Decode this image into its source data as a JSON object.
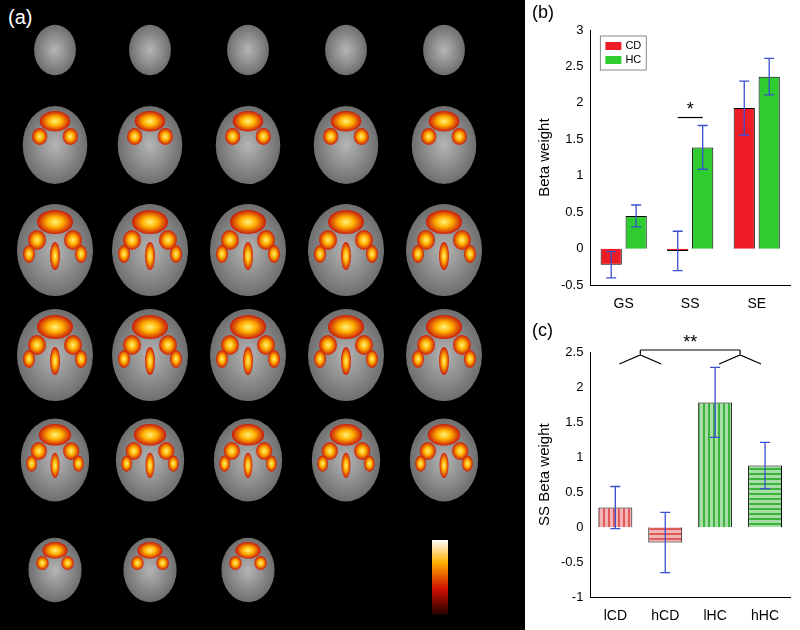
{
  "panel_a": {
    "title": "(a)"
  },
  "chart_data": [
    {
      "type": "bar",
      "title": "(b)",
      "y_label": "Beta weight",
      "categories": [
        "GS",
        "SS",
        "SE"
      ],
      "series": [
        {
          "name": "CD",
          "color": "#ee1c24",
          "values": [
            -0.22,
            -0.03,
            1.93
          ],
          "errors": [
            0.18,
            0.27,
            0.37
          ]
        },
        {
          "name": "HC",
          "color": "#2ecc2e",
          "values": [
            0.45,
            1.39,
            2.36
          ],
          "errors": [
            0.15,
            0.3,
            0.25
          ]
        }
      ],
      "ylim": [
        -0.5,
        3
      ],
      "yticks": [
        -0.5,
        0,
        0.5,
        1,
        1.5,
        2,
        2.5,
        3
      ],
      "grid": false,
      "legend": "upper left",
      "annotations": [
        {
          "text": "*",
          "category": "SS"
        }
      ]
    },
    {
      "type": "bar",
      "title": "(c)",
      "y_label": "SS Beta weight",
      "categories": [
        "lCD",
        "hCD",
        "lHC",
        "hHC"
      ],
      "values": [
        0.28,
        -0.22,
        1.78,
        0.88
      ],
      "errors": [
        0.3,
        0.43,
        0.5,
        0.33
      ],
      "colors": [
        "#e05a5a",
        "#e05a5a",
        "#3cb43c",
        "#3cb43c"
      ],
      "ylim": [
        -1,
        2.5
      ],
      "yticks": [
        -1,
        -0.5,
        0,
        0.5,
        1,
        1.5,
        2,
        2.5
      ],
      "grid": false,
      "annotations": [
        {
          "text": "**",
          "groups": [
            [
              "lCD",
              "hCD"
            ],
            [
              "lHC",
              "hHC"
            ]
          ]
        }
      ]
    }
  ]
}
